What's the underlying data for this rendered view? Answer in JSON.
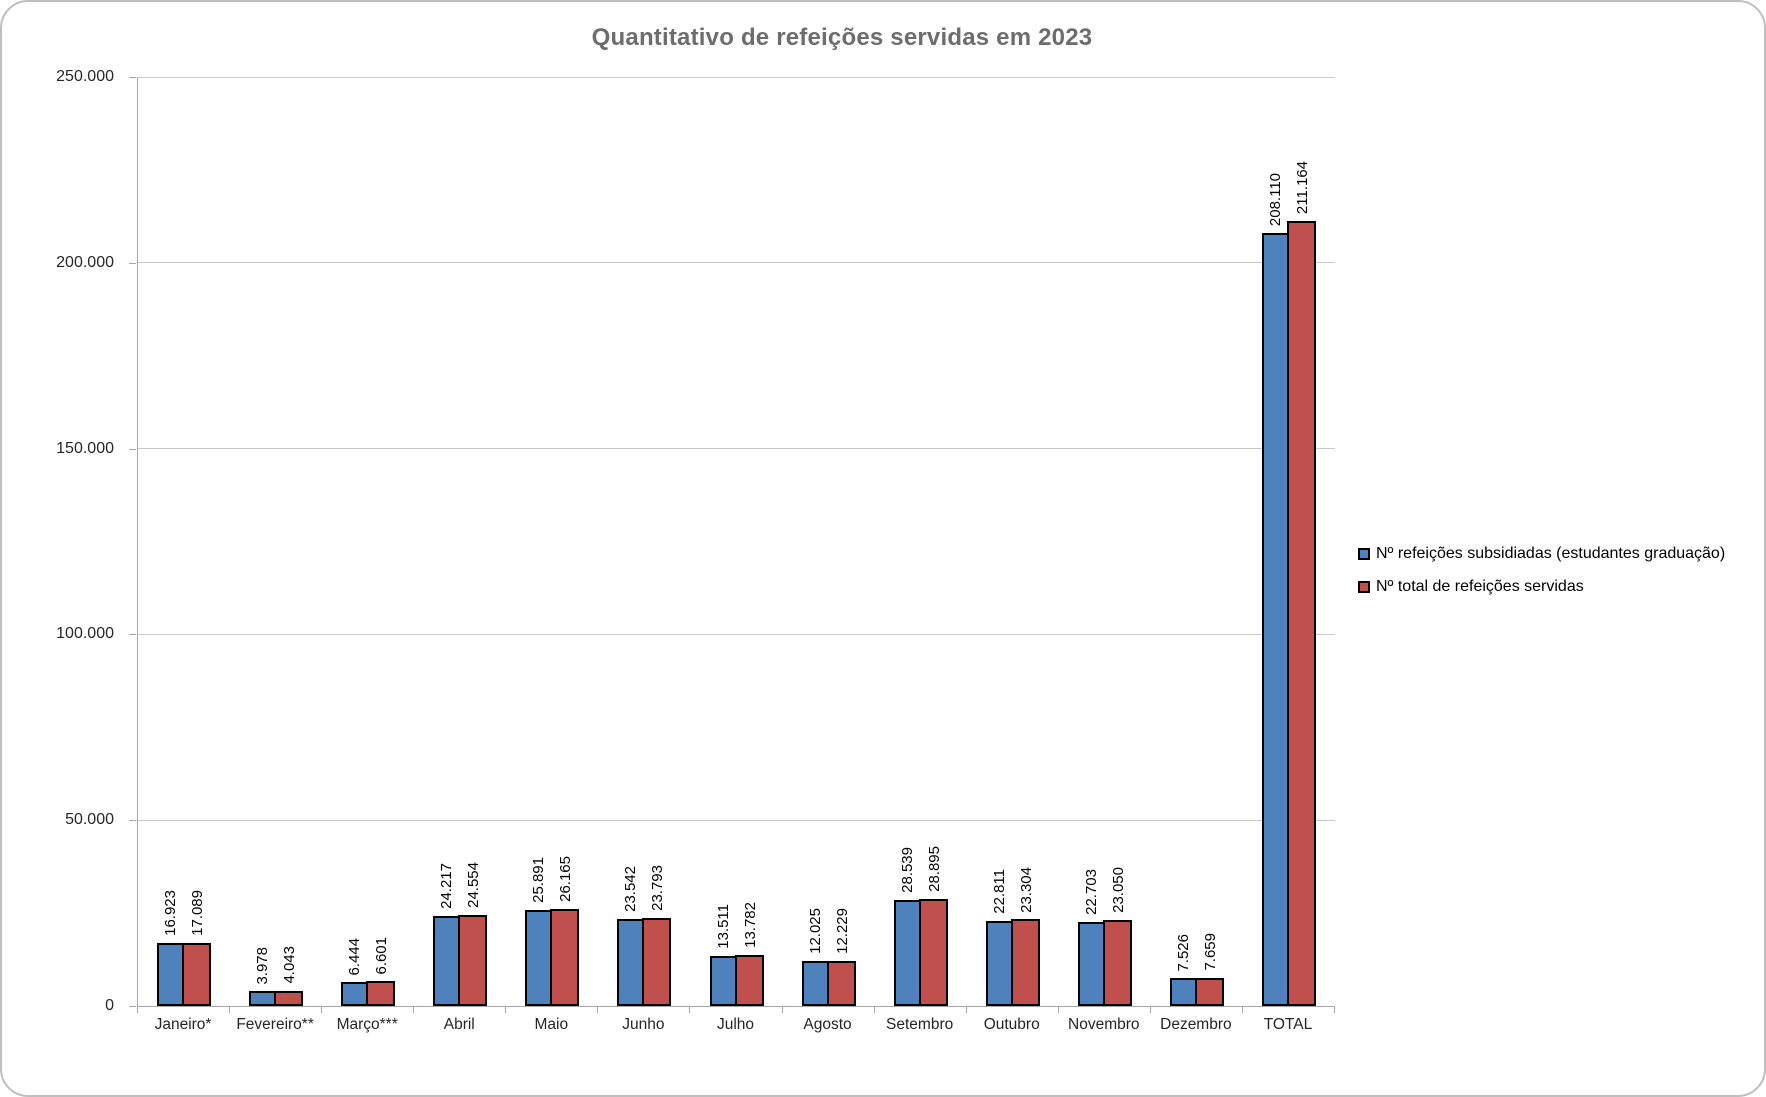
{
  "chart_data": {
    "type": "bar",
    "title": "Quantitativo de refeições servidas em 2023",
    "categories": [
      "Janeiro*",
      "Fevereiro**",
      "Março***",
      "Abril",
      "Maio",
      "Junho",
      "Julho",
      "Agosto",
      "Setembro",
      "Outubro",
      "Novembro",
      "Dezembro",
      "TOTAL"
    ],
    "series": [
      {
        "name": "Nº refeições subsidiadas (estudantes graduação)",
        "color": "#4F81BD",
        "values": [
          16923,
          3978,
          6444,
          24217,
          25891,
          23542,
          13511,
          12025,
          28539,
          22811,
          22703,
          7526,
          208110
        ]
      },
      {
        "name": "Nº total de refeições servidas",
        "color": "#C0504D",
        "values": [
          17089,
          4043,
          6601,
          24554,
          26165,
          23793,
          13782,
          12229,
          28895,
          23304,
          23050,
          7659,
          211164
        ]
      }
    ],
    "xlabel": "",
    "ylabel": "",
    "ylim": [
      0,
      250000
    ],
    "ytick_step": 50000,
    "ytick_labels": [
      "0",
      "50.000",
      "100.000",
      "150.000",
      "200.000",
      "250.000"
    ],
    "grid": true,
    "legend_position": "right",
    "number_format": "thousands-dot",
    "data_labels": "rotated-vertical",
    "bar_border_color": "#000000",
    "gridline_color": "#C9C9C9",
    "axis_color": "#A6A6A6",
    "title_color": "#6D6D6D"
  }
}
